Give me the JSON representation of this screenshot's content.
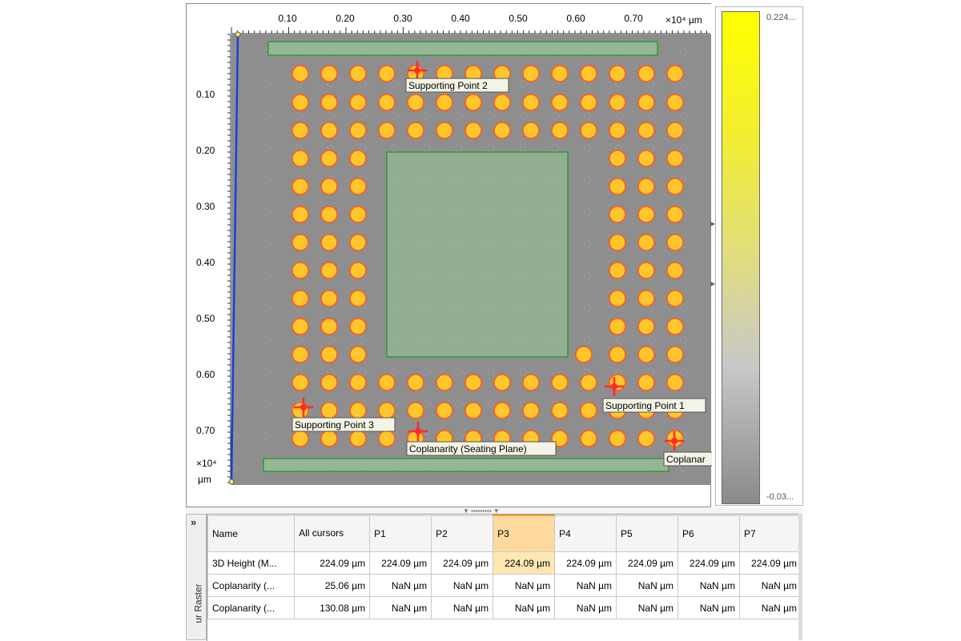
{
  "viewer": {
    "x_axis": {
      "ticks": [
        "0.10",
        "0.20",
        "0.30",
        "0.40",
        "0.50",
        "0.60",
        "0.70"
      ],
      "scale_label": "×10⁴ µm"
    },
    "y_axis": {
      "ticks": [
        "0.10",
        "0.20",
        "0.30",
        "0.40",
        "0.50",
        "0.60",
        "0.70"
      ],
      "scale_label": "×10⁴",
      "unit_label": "µm"
    },
    "colors": {
      "ball_fill": "#ffc72c",
      "ball_outline": "#ff5a1e",
      "roi_fill": "#9ad79a",
      "roi_stroke": "#2f9a3a",
      "cursor": "#ff2a2a",
      "reference_line": "#1d3fd6"
    },
    "supporting_points": [
      {
        "label": "Supporting Point 2"
      },
      {
        "label": "Supporting Point 1"
      },
      {
        "label": "Supporting Point 3"
      },
      {
        "label": "Coplanarity (Seating Plane)"
      },
      {
        "label": "Coplanar"
      }
    ]
  },
  "colorbar": {
    "max_label": "0.224...",
    "min_label": "-0.03..."
  },
  "panel": {
    "collapse_glyph": "»",
    "side_label": "ur Raster"
  },
  "table": {
    "columns": [
      "Name",
      "All cursors",
      "P1",
      "P2",
      "P3",
      "P4",
      "P5",
      "P6",
      "P7"
    ],
    "rows": [
      [
        "3D Height (M...",
        "224.09 µm",
        "224.09 µm",
        "224.09 µm",
        "224.09 µm",
        "224.09 µm",
        "224.09 µm",
        "224.09 µm",
        "224.09 µm"
      ],
      [
        "Coplanarity (...",
        "25.06 µm",
        "NaN µm",
        "NaN µm",
        "NaN µm",
        "NaN µm",
        "NaN µm",
        "NaN µm",
        "NaN µm"
      ],
      [
        "Coplanarity (...",
        "130.08 µm",
        "NaN µm",
        "NaN µm",
        "NaN µm",
        "NaN µm",
        "NaN µm",
        "NaN µm",
        "NaN µm"
      ]
    ],
    "active_column": "P3"
  }
}
